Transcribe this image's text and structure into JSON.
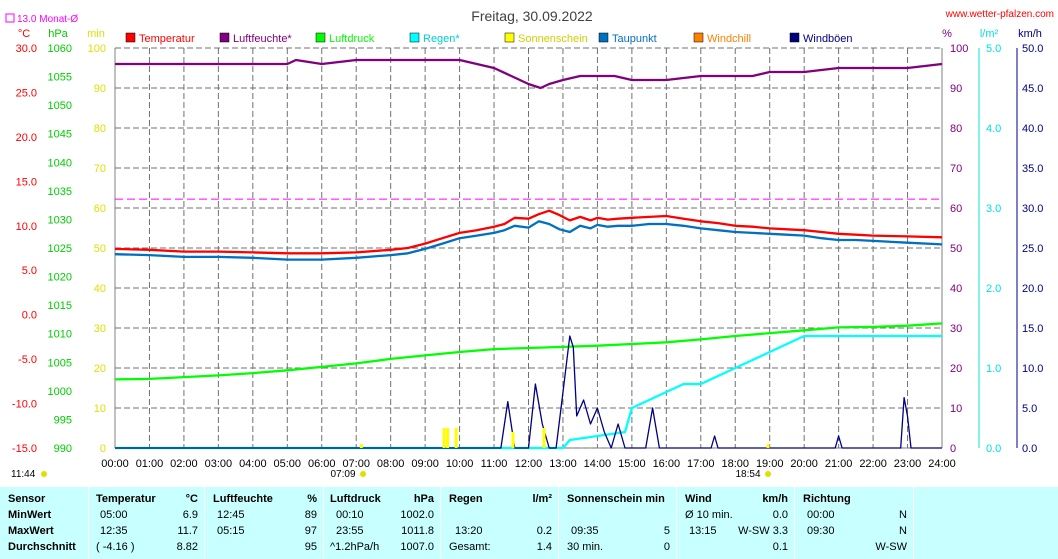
{
  "header": {
    "title": "Freitag, 30.09.2022",
    "source": "www.wetter-pfalzen.com",
    "monthly_avg": "13.0 Monat-Ø"
  },
  "chart_data": {
    "type": "line",
    "title": "Freitag, 30.09.2022",
    "x_range_hours": [
      0,
      24
    ],
    "x_ticks": [
      "00:00",
      "01:00",
      "02:00",
      "03:00",
      "04:00",
      "05:00",
      "06:00",
      "07:00",
      "08:00",
      "09:00",
      "10:00",
      "11:00",
      "12:00",
      "13:00",
      "14:00",
      "15:00",
      "16:00",
      "17:00",
      "18:00",
      "19:00",
      "20:00",
      "21:00",
      "22:00",
      "23:00",
      "24:00"
    ],
    "axes": {
      "temp": {
        "unit": "°C",
        "range": [
          -15,
          30
        ],
        "ticks": [
          "30.0",
          "25.0",
          "20.0",
          "15.0",
          "10.0",
          "5.0",
          "0.0",
          "-5.0",
          "-10.0",
          "-15.0"
        ],
        "color": "#ff0000"
      },
      "pressure": {
        "unit": "hPa",
        "range": [
          990,
          1060
        ],
        "ticks": [
          "1060",
          "1055",
          "1050",
          "1045",
          "1040",
          "1035",
          "1030",
          "1025",
          "1020",
          "1015",
          "1010",
          "1005",
          "1000",
          "995",
          "990"
        ],
        "color": "#00cc00"
      },
      "sun_min": {
        "unit": "min",
        "range": [
          0,
          100
        ],
        "ticks": [
          "100",
          "90",
          "80",
          "70",
          "60",
          "50",
          "40",
          "30",
          "20",
          "10",
          "0"
        ],
        "color": "#e0e000"
      },
      "humidity": {
        "unit": "%",
        "range": [
          0,
          100
        ],
        "ticks": [
          "100",
          "90",
          "80",
          "70",
          "60",
          "50",
          "40",
          "30",
          "20",
          "10",
          "0"
        ],
        "color": "#800080"
      },
      "rain": {
        "unit": "l/m²",
        "range": [
          0,
          5
        ],
        "ticks": [
          "5.0",
          "4.0",
          "3.0",
          "2.0",
          "1.0",
          "0.0"
        ],
        "color": "#00e0e0"
      },
      "wind": {
        "unit": "km/h",
        "range": [
          0,
          50
        ],
        "ticks": [
          "50.0",
          "45.0",
          "40.0",
          "35.0",
          "30.0",
          "25.0",
          "20.0",
          "15.0",
          "10.0",
          "5.0",
          "0.0"
        ],
        "color": "#000080"
      }
    },
    "legend": [
      {
        "name": "Temperatur",
        "color": "#ff0000"
      },
      {
        "name": "Luftfeuchte*",
        "color": "#800080"
      },
      {
        "name": "Luftdruck",
        "color": "#00ff00"
      },
      {
        "name": "Regen*",
        "color": "#00ffff"
      },
      {
        "name": "Sonnenschein",
        "color": "#ffff00"
      },
      {
        "name": "Taupunkt",
        "color": "#0070c0"
      },
      {
        "name": "Windchill",
        "color": "#ff8000"
      },
      {
        "name": "Windböen",
        "color": "#000080"
      }
    ],
    "monthly_avg_temp": 13.0,
    "series": [
      {
        "name": "Temperatur",
        "axis": "temp",
        "color": "#ff0000",
        "x": [
          0,
          1,
          2,
          3,
          4,
          5,
          6,
          7,
          8,
          8.5,
          9,
          9.5,
          10,
          10.5,
          11,
          11.3,
          11.6,
          12,
          12.3,
          12.6,
          12.9,
          13.2,
          13.5,
          13.8,
          14,
          14.3,
          14.6,
          15,
          15.5,
          16,
          16.5,
          17,
          17.5,
          18,
          18.5,
          19,
          19.5,
          20,
          20.5,
          21,
          21.5,
          22,
          23,
          24
        ],
        "y": [
          7.4,
          7.3,
          7.1,
          7.1,
          7.0,
          6.9,
          6.9,
          7.0,
          7.3,
          7.5,
          8.0,
          8.6,
          9.2,
          9.5,
          9.9,
          10.2,
          10.9,
          10.8,
          11.3,
          11.7,
          11.2,
          10.6,
          11.0,
          10.6,
          10.9,
          10.7,
          10.8,
          10.9,
          11.0,
          11.1,
          10.8,
          10.5,
          10.3,
          10.0,
          9.9,
          9.7,
          9.6,
          9.5,
          9.3,
          9.1,
          9.0,
          8.9,
          8.8,
          8.7
        ]
      },
      {
        "name": "Taupunkt",
        "axis": "temp",
        "color": "#0070c0",
        "x": [
          0,
          1,
          2,
          3,
          4,
          5,
          6,
          7,
          8,
          8.5,
          9,
          9.5,
          10,
          10.5,
          11,
          11.3,
          11.6,
          12,
          12.3,
          12.6,
          12.9,
          13.2,
          13.5,
          13.8,
          14,
          14.3,
          14.6,
          15,
          15.5,
          16,
          16.5,
          17,
          17.5,
          18,
          18.5,
          19,
          19.5,
          20,
          20.5,
          21,
          21.5,
          22,
          23,
          24
        ],
        "y": [
          6.8,
          6.7,
          6.5,
          6.5,
          6.4,
          6.2,
          6.2,
          6.4,
          6.7,
          6.9,
          7.4,
          8.0,
          8.6,
          8.9,
          9.2,
          9.5,
          10.0,
          9.8,
          10.5,
          10.2,
          9.6,
          9.3,
          10.0,
          9.7,
          10.1,
          9.9,
          10.0,
          10.0,
          10.2,
          10.2,
          10.0,
          9.7,
          9.5,
          9.3,
          9.2,
          9.1,
          9.0,
          8.9,
          8.6,
          8.4,
          8.4,
          8.3,
          8.1,
          7.9
        ]
      },
      {
        "name": "Luftfeuchte*",
        "axis": "humidity",
        "color": "#800080",
        "x": [
          0,
          1,
          2,
          3,
          4,
          5,
          5.25,
          6,
          7,
          8,
          9,
          10,
          10.5,
          11,
          11.5,
          12,
          12.35,
          12.6,
          13,
          13.5,
          14,
          14.5,
          15,
          16,
          17,
          18,
          18.5,
          19,
          20,
          21,
          22,
          23,
          24
        ],
        "y": [
          96,
          96,
          96,
          96,
          96,
          96,
          97,
          96,
          97,
          97,
          97,
          97,
          96,
          95,
          93,
          91,
          90,
          91,
          92,
          93,
          93,
          93,
          92,
          92,
          93,
          93,
          93,
          94,
          94,
          95,
          95,
          95,
          96
        ]
      },
      {
        "name": "Luftdruck",
        "axis": "pressure",
        "color": "#00ff00",
        "x": [
          0,
          1,
          2,
          3,
          4,
          5,
          6,
          7,
          8,
          9,
          10,
          11,
          12,
          13,
          14,
          15,
          16,
          17,
          18,
          19,
          20,
          21,
          22,
          23,
          24
        ],
        "y": [
          1002.0,
          1002.1,
          1002.4,
          1002.7,
          1003.1,
          1003.6,
          1004.2,
          1004.8,
          1005.6,
          1006.2,
          1006.8,
          1007.3,
          1007.5,
          1007.7,
          1007.9,
          1008.2,
          1008.5,
          1009.0,
          1009.6,
          1010.1,
          1010.6,
          1011.1,
          1011.2,
          1011.4,
          1011.8
        ]
      },
      {
        "name": "Regen*",
        "axis": "rain",
        "color": "#00ffff",
        "x": [
          0,
          13,
          13.2,
          14.8,
          15,
          15.5,
          16,
          16.5,
          17,
          17.5,
          18,
          18.5,
          19,
          19.5,
          20,
          20.5,
          21,
          22,
          23,
          24
        ],
        "y": [
          0,
          0,
          0.1,
          0.2,
          0.5,
          0.6,
          0.7,
          0.8,
          0.8,
          0.9,
          1.0,
          1.1,
          1.2,
          1.3,
          1.4,
          1.4,
          1.4,
          1.4,
          1.4,
          1.4
        ]
      },
      {
        "name": "Windböen",
        "axis": "wind",
        "color": "#000080",
        "x": [
          0,
          11,
          11.2,
          11.4,
          11.6,
          11.8,
          12,
          12.2,
          12.4,
          12.6,
          12.8,
          13,
          13.2,
          13.3,
          13.4,
          13.6,
          13.8,
          14,
          14.2,
          14.4,
          14.6,
          14.8,
          15,
          15.4,
          15.6,
          15.8,
          16,
          17.3,
          17.4,
          17.5,
          20.9,
          21,
          21.1,
          22.8,
          22.9,
          23.0,
          23.1,
          24
        ],
        "y": [
          0,
          0,
          0,
          5.8,
          0,
          0,
          0,
          8.0,
          3.0,
          0,
          0,
          7.0,
          14.0,
          12.6,
          4.0,
          6.0,
          3.0,
          5.0,
          2.0,
          0,
          3.0,
          0,
          0,
          0,
          5.0,
          0,
          0,
          0,
          1.5,
          0,
          0,
          1.5,
          0,
          0,
          6.3,
          4.0,
          0,
          0
        ]
      },
      {
        "name": "Sonnenschein",
        "axis": "sun_min",
        "color": "#ffff00",
        "type": "bar",
        "x": [
          7.15,
          9.55,
          9.65,
          9.9,
          11.55,
          12.45,
          18.95
        ],
        "y": [
          1,
          5,
          5,
          5,
          4,
          5,
          1
        ]
      }
    ]
  },
  "stats": {
    "headers": {
      "sensor": "Sensor",
      "temperature": "Temperatur",
      "temp_unit": "°C",
      "humidity": "Luftfeuchte",
      "humidity_unit": "%",
      "pressure": "Luftdruck",
      "pressure_unit": "hPa",
      "rain": "Regen",
      "rain_unit": "l/m²",
      "sun": "Sonnenschein min",
      "wind": "Wind",
      "wind_unit": "km/h",
      "direction": "Richtung"
    },
    "rows": [
      {
        "label": "MinWert",
        "temp_time": "05:00",
        "temp_val": "6.9",
        "hum_time": "12:45",
        "hum_val": "89",
        "pres_time": "00:10",
        "pres_val": "1002.0",
        "rain_time": "",
        "rain_val": "",
        "sun_time": "",
        "sun_val": "",
        "wind_time": "Ø 10 min.",
        "wind_val": "0.0",
        "dir_time": "00:00",
        "dir_val": "N"
      },
      {
        "label": "MaxWert",
        "temp_time": "12:35",
        "temp_val": "11.7",
        "hum_time": "05:15",
        "hum_val": "97",
        "pres_time": "23:55",
        "pres_val": "1011.8",
        "rain_time": "13:20",
        "rain_val": "0.2",
        "sun_time": "09:35",
        "sun_val": "5",
        "wind_time": "13:15",
        "wind_val": "W-SW 3.3",
        "dir_time": "09:30",
        "dir_val": "N"
      },
      {
        "label": "Durchschnitt",
        "temp_time": "( -4.16 )",
        "temp_val": "8.82",
        "hum_time": "",
        "hum_val": "95",
        "pres_time": "^1.2hPa/h",
        "pres_val": "1007.0",
        "rain_time": "Gesamt:",
        "rain_val": "1.4",
        "sun_time": "30 min.",
        "sun_val": "0",
        "wind_time": "",
        "wind_val": "0.1",
        "dir_time": "",
        "dir_val": "W-SW"
      }
    ]
  },
  "footer": {
    "sunrise": "07:09",
    "sunset": "18:54",
    "daylength": "11:44"
  }
}
